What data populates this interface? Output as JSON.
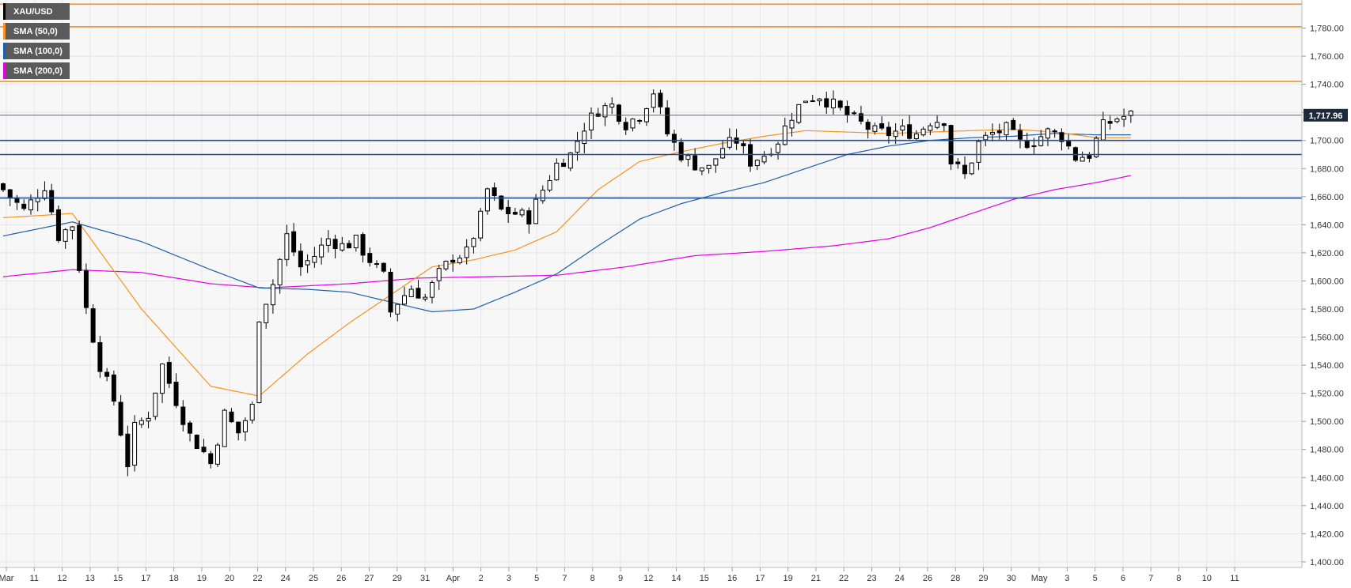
{
  "legend": [
    {
      "label": "XAU/USD",
      "color": "#000000"
    },
    {
      "label": "SMA (50,0)",
      "color": "#f7931e"
    },
    {
      "label": "SMA (100,0)",
      "color": "#1f5fa8"
    },
    {
      "label": "SMA (200,0)",
      "color": "#e000e0"
    }
  ],
  "colors": {
    "background": "#f7f7f7",
    "grid": "#e6e6e6",
    "candle": "#000000",
    "sma50": "#f7931e",
    "sma100": "#1f5fa8",
    "sma200": "#e000e0",
    "resistance": "#f7931e",
    "support": "#1f4ea0",
    "price_tag": "#1c2a3a"
  },
  "chart_data": {
    "type": "candlestick",
    "title": "XAU/USD",
    "x_tick_labels": [
      "Mar",
      "11",
      "12",
      "13",
      "15",
      "17",
      "18",
      "19",
      "20",
      "22",
      "24",
      "25",
      "26",
      "27",
      "29",
      "31",
      "Apr",
      "2",
      "3",
      "5",
      "7",
      "8",
      "9",
      "12",
      "14",
      "15",
      "16",
      "17",
      "19",
      "21",
      "22",
      "23",
      "24",
      "26",
      "28",
      "29",
      "30",
      "May",
      "3",
      "5",
      "6",
      "7",
      "8",
      "10",
      "11"
    ],
    "y_tick_labels": [
      "1,780.00",
      "1,760.00",
      "1,740.00",
      "1,720.00",
      "1,700.00",
      "1,680.00",
      "1,660.00",
      "1,640.00",
      "1,620.00",
      "1,600.00",
      "1,580.00",
      "1,560.00",
      "1,540.00",
      "1,520.00",
      "1,500.00",
      "1,480.00",
      "1,460.00",
      "1,440.00",
      "1,420.00",
      "1,400.00"
    ],
    "ylim": [
      1396,
      1800
    ],
    "current_price": 1717.96,
    "current_price_label": "1,717.96",
    "horizontal_levels": [
      {
        "kind": "resistance",
        "value": 1797
      },
      {
        "kind": "resistance",
        "value": 1781
      },
      {
        "kind": "resistance",
        "value": 1742
      },
      {
        "kind": "support",
        "value": 1700
      },
      {
        "kind": "support",
        "value": 1690
      },
      {
        "kind": "support",
        "value": 1659
      }
    ],
    "close_path": [
      [
        0,
        1665
      ],
      [
        3,
        1650
      ],
      [
        6,
        1668
      ],
      [
        8,
        1632
      ],
      [
        10,
        1640
      ],
      [
        12,
        1580
      ],
      [
        14,
        1540
      ],
      [
        16,
        1515
      ],
      [
        18,
        1470
      ],
      [
        19,
        1495
      ],
      [
        21,
        1505
      ],
      [
        23,
        1540
      ],
      [
        25,
        1515
      ],
      [
        27,
        1490
      ],
      [
        29,
        1478
      ],
      [
        30,
        1470
      ],
      [
        32,
        1505
      ],
      [
        34,
        1492
      ],
      [
        36,
        1510
      ],
      [
        37,
        1575
      ],
      [
        39,
        1598
      ],
      [
        41,
        1632
      ],
      [
        43,
        1610
      ],
      [
        45,
        1618
      ],
      [
        47,
        1630
      ],
      [
        49,
        1625
      ],
      [
        51,
        1628
      ],
      [
        53,
        1615
      ],
      [
        55,
        1603
      ],
      [
        56,
        1578
      ],
      [
        57,
        1585
      ],
      [
        59,
        1595
      ],
      [
        61,
        1588
      ],
      [
        63,
        1605
      ],
      [
        65,
        1617
      ],
      [
        67,
        1620
      ],
      [
        69,
        1645
      ],
      [
        70,
        1665
      ],
      [
        72,
        1650
      ],
      [
        74,
        1648
      ],
      [
        76,
        1645
      ],
      [
        78,
        1665
      ],
      [
        80,
        1683
      ],
      [
        82,
        1690
      ],
      [
        84,
        1710
      ],
      [
        86,
        1722
      ],
      [
        88,
        1725
      ],
      [
        90,
        1712
      ],
      [
        92,
        1718
      ],
      [
        94,
        1735
      ],
      [
        96,
        1705
      ],
      [
        98,
        1690
      ],
      [
        100,
        1683
      ],
      [
        102,
        1680
      ],
      [
        104,
        1695
      ],
      [
        106,
        1700
      ],
      [
        108,
        1685
      ],
      [
        110,
        1690
      ],
      [
        112,
        1700
      ],
      [
        114,
        1718
      ],
      [
        116,
        1730
      ],
      [
        118,
        1732
      ],
      [
        120,
        1725
      ],
      [
        122,
        1718
      ],
      [
        124,
        1712
      ],
      [
        126,
        1706
      ],
      [
        128,
        1705
      ],
      [
        130,
        1707
      ],
      [
        132,
        1705
      ],
      [
        134,
        1714
      ],
      [
        136,
        1715
      ],
      [
        137,
        1685
      ],
      [
        139,
        1675
      ],
      [
        141,
        1698
      ],
      [
        143,
        1705
      ],
      [
        145,
        1708
      ],
      [
        147,
        1698
      ],
      [
        149,
        1700
      ],
      [
        151,
        1706
      ],
      [
        153,
        1703
      ],
      [
        155,
        1688
      ],
      [
        157,
        1690
      ],
      [
        159,
        1710
      ],
      [
        161,
        1716
      ],
      [
        163,
        1718
      ]
    ],
    "sma50_points": [
      [
        0,
        1645
      ],
      [
        10,
        1648
      ],
      [
        20,
        1580
      ],
      [
        30,
        1525
      ],
      [
        37,
        1518
      ],
      [
        44,
        1548
      ],
      [
        50,
        1570
      ],
      [
        56,
        1590
      ],
      [
        62,
        1610
      ],
      [
        68,
        1615
      ],
      [
        74,
        1622
      ],
      [
        80,
        1635
      ],
      [
        86,
        1665
      ],
      [
        92,
        1685
      ],
      [
        98,
        1692
      ],
      [
        104,
        1698
      ],
      [
        110,
        1703
      ],
      [
        116,
        1707
      ],
      [
        122,
        1706
      ],
      [
        128,
        1705
      ],
      [
        134,
        1706
      ],
      [
        140,
        1707
      ],
      [
        146,
        1708
      ],
      [
        152,
        1706
      ],
      [
        158,
        1702
      ],
      [
        163,
        1702
      ]
    ],
    "sma100_points": [
      [
        0,
        1632
      ],
      [
        10,
        1642
      ],
      [
        20,
        1628
      ],
      [
        30,
        1608
      ],
      [
        37,
        1595
      ],
      [
        44,
        1594
      ],
      [
        50,
        1592
      ],
      [
        56,
        1585
      ],
      [
        62,
        1578
      ],
      [
        68,
        1580
      ],
      [
        74,
        1592
      ],
      [
        80,
        1605
      ],
      [
        86,
        1625
      ],
      [
        92,
        1644
      ],
      [
        98,
        1655
      ],
      [
        104,
        1663
      ],
      [
        110,
        1670
      ],
      [
        116,
        1680
      ],
      [
        122,
        1690
      ],
      [
        128,
        1696
      ],
      [
        134,
        1700
      ],
      [
        140,
        1702
      ],
      [
        146,
        1703
      ],
      [
        152,
        1705
      ],
      [
        158,
        1704
      ],
      [
        163,
        1704
      ]
    ],
    "sma200_points": [
      [
        0,
        1603
      ],
      [
        10,
        1608
      ],
      [
        20,
        1606
      ],
      [
        30,
        1598
      ],
      [
        38,
        1595
      ],
      [
        50,
        1598
      ],
      [
        60,
        1602
      ],
      [
        70,
        1603
      ],
      [
        80,
        1604
      ],
      [
        90,
        1610
      ],
      [
        100,
        1618
      ],
      [
        110,
        1621
      ],
      [
        120,
        1625
      ],
      [
        128,
        1630
      ],
      [
        134,
        1638
      ],
      [
        140,
        1648
      ],
      [
        146,
        1658
      ],
      [
        152,
        1665
      ],
      [
        158,
        1670
      ],
      [
        163,
        1675
      ]
    ]
  }
}
